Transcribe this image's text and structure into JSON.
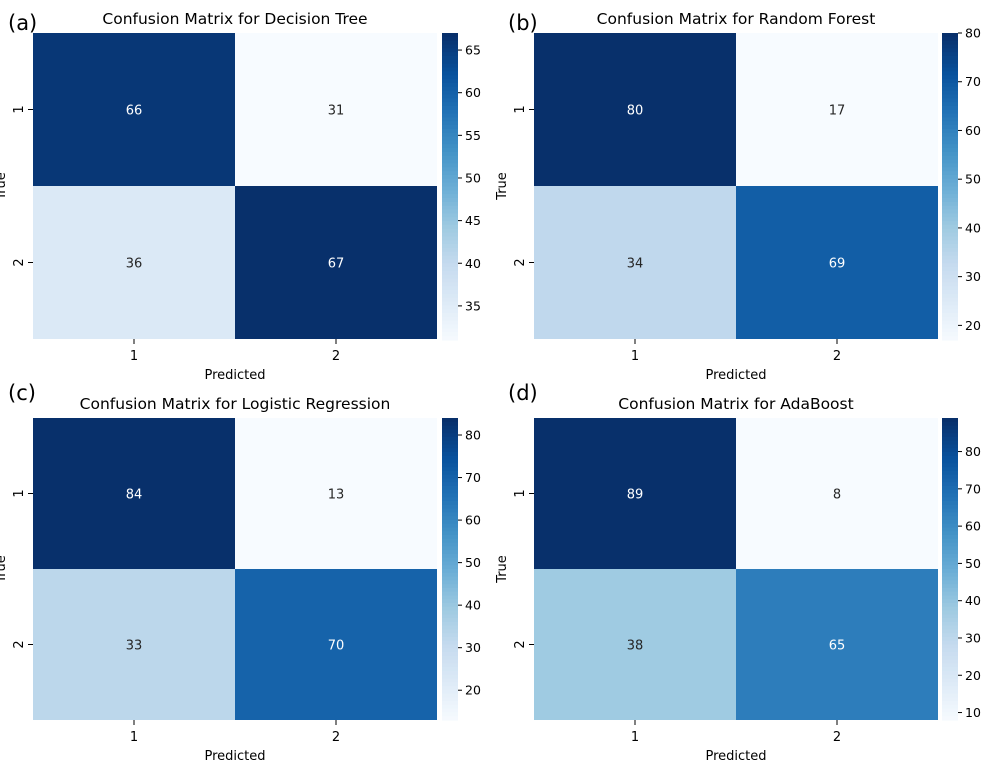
{
  "chart_data": [
    {
      "type": "heatmap",
      "panel_label": "(a)",
      "title": "Confusion Matrix for Decision Tree",
      "xlabel": "Predicted",
      "ylabel": "True",
      "x_categories": [
        "1",
        "2"
      ],
      "y_categories": [
        "1",
        "2"
      ],
      "values": [
        [
          66,
          31
        ],
        [
          36,
          67
        ]
      ],
      "colorbar": {
        "min": 31,
        "max": 67,
        "ticks": [
          35,
          40,
          45,
          50,
          55,
          60,
          65
        ]
      },
      "colormap": "Blues"
    },
    {
      "type": "heatmap",
      "panel_label": "(b)",
      "title": "Confusion Matrix for Random Forest",
      "xlabel": "Predicted",
      "ylabel": "True",
      "x_categories": [
        "1",
        "2"
      ],
      "y_categories": [
        "1",
        "2"
      ],
      "values": [
        [
          80,
          17
        ],
        [
          34,
          69
        ]
      ],
      "colorbar": {
        "min": 17,
        "max": 80,
        "ticks": [
          20,
          30,
          40,
          50,
          60,
          70,
          80
        ]
      },
      "colormap": "Blues"
    },
    {
      "type": "heatmap",
      "panel_label": "(c)",
      "title": "Confusion Matrix for Logistic Regression",
      "xlabel": "Predicted",
      "ylabel": "True",
      "x_categories": [
        "1",
        "2"
      ],
      "y_categories": [
        "1",
        "2"
      ],
      "values": [
        [
          84,
          13
        ],
        [
          33,
          70
        ]
      ],
      "colorbar": {
        "min": 13,
        "max": 84,
        "ticks": [
          20,
          30,
          40,
          50,
          60,
          70,
          80
        ]
      },
      "colormap": "Blues"
    },
    {
      "type": "heatmap",
      "panel_label": "(d)",
      "title": "Confusion Matrix for AdaBoost",
      "xlabel": "Predicted",
      "ylabel": "True",
      "x_categories": [
        "1",
        "2"
      ],
      "y_categories": [
        "1",
        "2"
      ],
      "values": [
        [
          89,
          8
        ],
        [
          38,
          65
        ]
      ],
      "colorbar": {
        "min": 8,
        "max": 89,
        "ticks": [
          10,
          20,
          30,
          40,
          50,
          60,
          70,
          80
        ]
      },
      "colormap": "Blues"
    }
  ]
}
